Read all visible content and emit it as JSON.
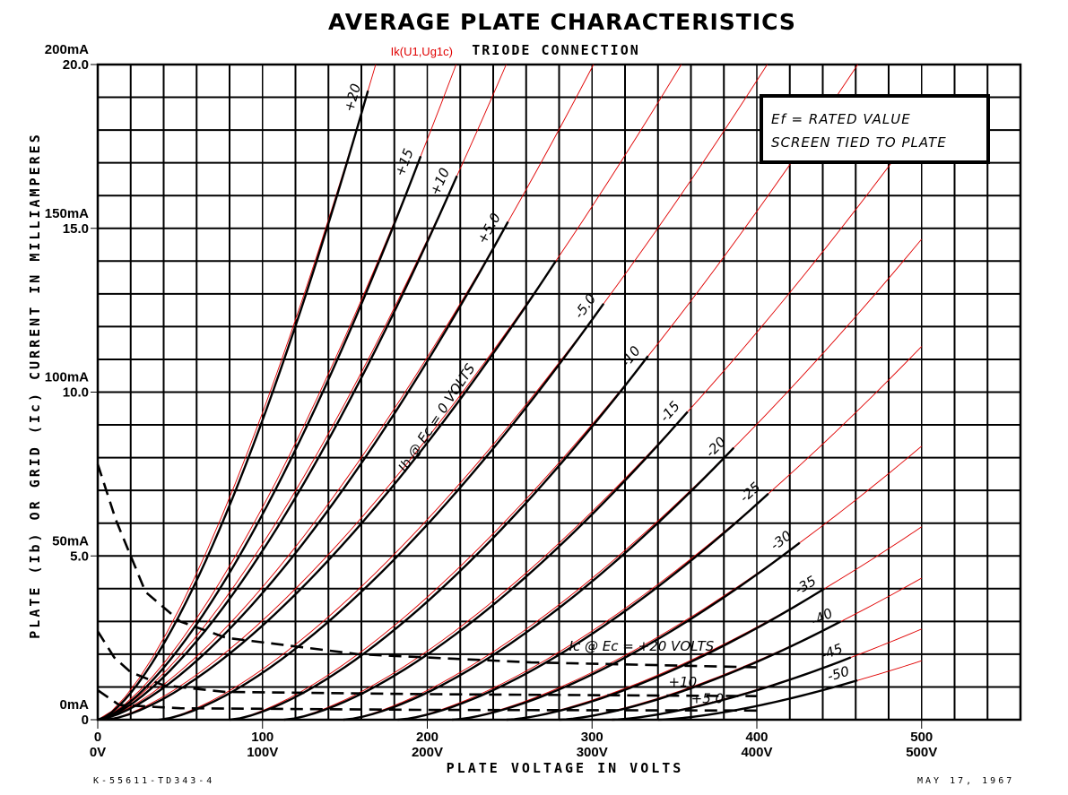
{
  "chart_data": {
    "type": "line",
    "title": "AVERAGE PLATE CHARACTERISTICS",
    "subtitle": "TRIODE CONNECTION",
    "overlay_label": "Ik(U1,Ug1c)",
    "xlabel": "PLATE VOLTAGE IN VOLTS",
    "ylabel": "PLATE (Ib) OR GRID (Ic) CURRENT IN MILLIAMPERES",
    "xlim": [
      0,
      560
    ],
    "ylim": [
      0,
      200
    ],
    "grid": true,
    "x_ticks": [
      {
        "value": 0,
        "label": "0V",
        "orig": "0"
      },
      {
        "value": 100,
        "label": "100V",
        "orig": "100"
      },
      {
        "value": 200,
        "label": "200V",
        "orig": "200"
      },
      {
        "value": 300,
        "label": "300V",
        "orig": "300"
      },
      {
        "value": 400,
        "label": "400V",
        "orig": "400"
      },
      {
        "value": 500,
        "label": "500V",
        "orig": "500"
      }
    ],
    "y_ticks": [
      {
        "value": 0,
        "label": "0mA",
        "orig": "0"
      },
      {
        "value": 50,
        "label": "50mA",
        "orig": "5.0"
      },
      {
        "value": 100,
        "label": "100mA",
        "orig": "10.0"
      },
      {
        "value": 150,
        "label": "150mA",
        "orig": "15.0"
      },
      {
        "value": 200,
        "label": "200mA",
        "orig": "20.0"
      }
    ],
    "legend": {
      "line1": "Ef = RATED VALUE",
      "line2": "SCREEN TIED TO PLATE",
      "placement": "top-right"
    },
    "plate_series": [
      {
        "grid_v": 20,
        "label": "+20",
        "cutoff": 0,
        "end": [
          164,
          192
        ]
      },
      {
        "grid_v": 15,
        "label": "+15",
        "cutoff": 0,
        "end": [
          196,
          172
        ]
      },
      {
        "grid_v": 10,
        "label": "+10",
        "cutoff": 0,
        "end": [
          218,
          166
        ]
      },
      {
        "grid_v": 5,
        "label": "+5.0",
        "cutoff": 0,
        "end": [
          249,
          152
        ]
      },
      {
        "grid_v": 0,
        "label": "Ib @ Ec = 0 VOLTS",
        "cutoff": 5,
        "end": [
          278,
          140
        ]
      },
      {
        "grid_v": -5,
        "label": "-5.0",
        "cutoff": 37,
        "end": [
          307,
          127
        ]
      },
      {
        "grid_v": -10,
        "label": "-10",
        "cutoff": 80,
        "end": [
          334,
          111
        ]
      },
      {
        "grid_v": -15,
        "label": "-15",
        "cutoff": 113,
        "end": [
          358,
          94
        ]
      },
      {
        "grid_v": -20,
        "label": "-20",
        "cutoff": 149,
        "end": [
          386,
          83
        ]
      },
      {
        "grid_v": -25,
        "label": "-25",
        "cutoff": 182,
        "end": [
          407,
          69
        ]
      },
      {
        "grid_v": -30,
        "label": "-30",
        "cutoff": 215,
        "end": [
          426,
          54
        ]
      },
      {
        "grid_v": -35,
        "label": "-35",
        "cutoff": 248,
        "end": [
          441,
          40
        ]
      },
      {
        "grid_v": -40,
        "label": "-40",
        "cutoff": 280,
        "end": [
          451,
          30
        ]
      },
      {
        "grid_v": -45,
        "label": "-45",
        "cutoff": 312,
        "end": [
          457,
          19
        ]
      },
      {
        "grid_v": -50,
        "label": "-50",
        "cutoff": 340,
        "end": [
          461,
          12
        ]
      }
    ],
    "grid_current_series": [
      {
        "grid_v": 20,
        "label": "Ic @ Ec = +20 VOLTS",
        "points": [
          [
            0,
            78
          ],
          [
            11,
            61
          ],
          [
            29,
            39
          ],
          [
            50,
            30
          ],
          [
            78,
            25
          ],
          [
            158,
            20
          ],
          [
            263,
            17.5
          ],
          [
            400,
            16
          ]
        ]
      },
      {
        "grid_v": 10,
        "label": "+10",
        "points": [
          [
            0,
            27
          ],
          [
            10,
            19
          ],
          [
            20,
            14.5
          ],
          [
            40,
            10.5
          ],
          [
            77,
            8.5
          ],
          [
            200,
            7.8
          ],
          [
            400,
            7.2
          ]
        ]
      },
      {
        "grid_v": 5,
        "label": "+5.0",
        "points": [
          [
            0,
            9
          ],
          [
            13,
            4.5
          ],
          [
            50,
            3.5
          ],
          [
            200,
            3
          ],
          [
            400,
            2.8
          ]
        ]
      }
    ],
    "model_color": "#e00000",
    "model_xmax": 500
  },
  "footer": {
    "left": "K-55611-TD343-4",
    "right": "MAY 17, 1967"
  }
}
